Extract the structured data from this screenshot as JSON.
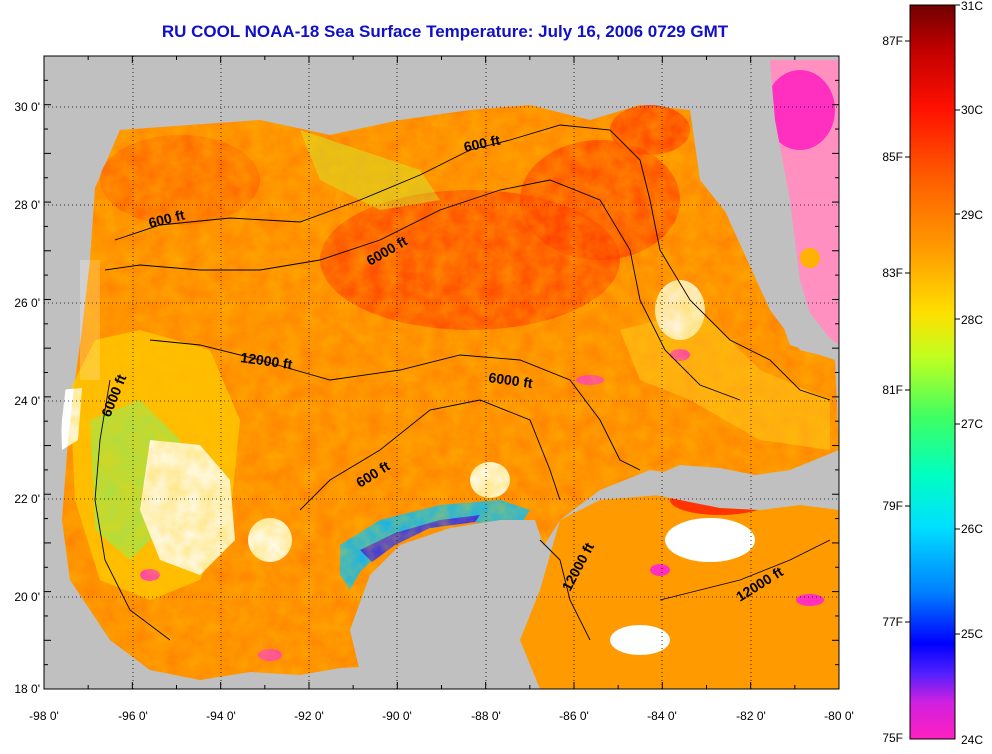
{
  "title": "RU COOL  NOAA-18  Sea Surface Temperature:  July 16, 2006 0729 GMT",
  "map": {
    "lon_ticks": [
      "-98 0'",
      "-96 0'",
      "-94 0'",
      "-92 0'",
      "-90 0'",
      "-88 0'",
      "-86 0'",
      "-84 0'",
      "-82 0'",
      "-80 0'"
    ],
    "lat_ticks": [
      "30 0'",
      "28 0'",
      "26 0'",
      "24 0'",
      "22 0'",
      "20 0'",
      "18 0'"
    ],
    "contours": [
      {
        "label": "600 ft"
      },
      {
        "label": "600 ft"
      },
      {
        "label": "6000 ft"
      },
      {
        "label": "12000 ft"
      },
      {
        "label": "6000 ft"
      },
      {
        "label": "6000 ft"
      },
      {
        "label": "600 ft"
      },
      {
        "label": "12000 ft"
      },
      {
        "label": "12000 ft"
      }
    ]
  },
  "colorbar": {
    "celsius": [
      "31C",
      "30C",
      "29C",
      "28C",
      "27C",
      "26C",
      "25C",
      "24C"
    ],
    "fahrenheit": [
      "87F",
      "85F",
      "83F",
      "81F",
      "79F",
      "77F",
      "75F"
    ]
  },
  "colors": {
    "title": "#1010c8",
    "land": "#c0c0c0",
    "colormap": [
      "#ff20c0",
      "#7f28ff",
      "#0000ff",
      "#00aaff",
      "#00ffdd",
      "#33ff66",
      "#e8ff10",
      "#ffb000",
      "#ff6000",
      "#ff0a0a",
      "#7a0000"
    ]
  }
}
